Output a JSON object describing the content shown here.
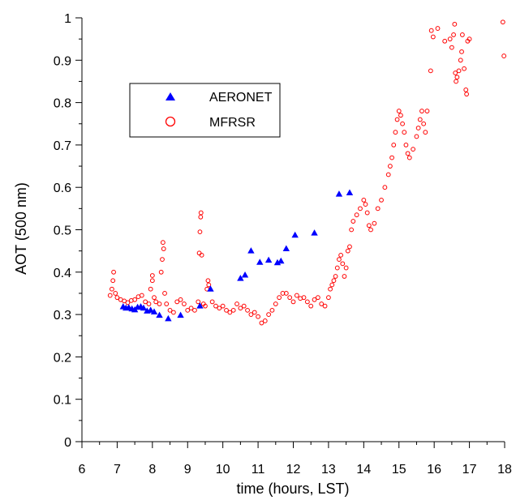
{
  "chart_data": {
    "type": "scatter",
    "title": "",
    "xlabel": "time (hours, LST)",
    "ylabel": "AOT (500 nm)",
    "xlim": [
      6,
      18
    ],
    "ylim": [
      0,
      1
    ],
    "x_major_ticks": [
      6,
      7,
      8,
      9,
      10,
      11,
      12,
      13,
      14,
      15,
      16,
      17,
      18
    ],
    "y_major_ticks": [
      0,
      0.1,
      0.2,
      0.3,
      0.4,
      0.5,
      0.6,
      0.7,
      0.8,
      0.9,
      1
    ],
    "x_tick_labels": [
      "6",
      "7",
      "8",
      "9",
      "10",
      "11",
      "12",
      "13",
      "14",
      "15",
      "16",
      "17",
      "18"
    ],
    "y_tick_labels": [
      "0",
      "0.1",
      "0.2",
      "0.3",
      "0.4",
      "0.5",
      "0.6",
      "0.7",
      "0.8",
      "0.9",
      "1"
    ],
    "grid": false,
    "legend": {
      "placement": "upper-left inside plot",
      "entries": [
        {
          "label": "AERONET",
          "marker": "filled-triangle",
          "color": "#0000ff"
        },
        {
          "label": "MFRSR",
          "marker": "open-circle",
          "color": "#ff0000"
        }
      ]
    },
    "series": [
      {
        "name": "AERONET",
        "marker": "filled-triangle",
        "color": "#0000ff",
        "points": [
          [
            7.17,
            0.318
          ],
          [
            7.25,
            0.315
          ],
          [
            7.33,
            0.316
          ],
          [
            7.42,
            0.313
          ],
          [
            7.5,
            0.311
          ],
          [
            7.58,
            0.317
          ],
          [
            7.67,
            0.318
          ],
          [
            7.75,
            0.315
          ],
          [
            7.85,
            0.308
          ],
          [
            7.95,
            0.31
          ],
          [
            8.05,
            0.306
          ],
          [
            8.2,
            0.298
          ],
          [
            8.45,
            0.29
          ],
          [
            8.8,
            0.298
          ],
          [
            9.35,
            0.32
          ],
          [
            9.65,
            0.36
          ],
          [
            10.5,
            0.385
          ],
          [
            10.63,
            0.393
          ],
          [
            10.8,
            0.45
          ],
          [
            11.05,
            0.423
          ],
          [
            11.3,
            0.428
          ],
          [
            11.55,
            0.422
          ],
          [
            11.65,
            0.426
          ],
          [
            11.8,
            0.455
          ],
          [
            12.05,
            0.487
          ],
          [
            12.6,
            0.492
          ],
          [
            13.3,
            0.584
          ],
          [
            13.6,
            0.587
          ]
        ]
      },
      {
        "name": "MFRSR",
        "marker": "open-circle",
        "color": "#ff0000",
        "points": [
          [
            6.8,
            0.345
          ],
          [
            6.85,
            0.36
          ],
          [
            6.88,
            0.38
          ],
          [
            6.9,
            0.4
          ],
          [
            6.95,
            0.35
          ],
          [
            7,
            0.34
          ],
          [
            7.1,
            0.335
          ],
          [
            7.2,
            0.332
          ],
          [
            7.3,
            0.328
          ],
          [
            7.4,
            0.333
          ],
          [
            7.5,
            0.335
          ],
          [
            7.6,
            0.342
          ],
          [
            7.7,
            0.345
          ],
          [
            7.8,
            0.33
          ],
          [
            7.9,
            0.325
          ],
          [
            7.95,
            0.36
          ],
          [
            8,
            0.38
          ],
          [
            8,
            0.392
          ],
          [
            8.05,
            0.34
          ],
          [
            8.1,
            0.33
          ],
          [
            8.2,
            0.325
          ],
          [
            8.25,
            0.4
          ],
          [
            8.28,
            0.43
          ],
          [
            8.3,
            0.47
          ],
          [
            8.32,
            0.455
          ],
          [
            8.35,
            0.35
          ],
          [
            8.4,
            0.325
          ],
          [
            8.5,
            0.31
          ],
          [
            8.6,
            0.305
          ],
          [
            8.7,
            0.33
          ],
          [
            8.8,
            0.335
          ],
          [
            8.9,
            0.325
          ],
          [
            9,
            0.31
          ],
          [
            9.1,
            0.315
          ],
          [
            9.2,
            0.31
          ],
          [
            9.3,
            0.33
          ],
          [
            9.33,
            0.445
          ],
          [
            9.35,
            0.495
          ],
          [
            9.37,
            0.53
          ],
          [
            9.38,
            0.54
          ],
          [
            9.4,
            0.44
          ],
          [
            9.45,
            0.325
          ],
          [
            9.5,
            0.32
          ],
          [
            9.55,
            0.36
          ],
          [
            9.58,
            0.38
          ],
          [
            9.6,
            0.37
          ],
          [
            9.7,
            0.33
          ],
          [
            9.8,
            0.32
          ],
          [
            9.9,
            0.315
          ],
          [
            10,
            0.32
          ],
          [
            10.1,
            0.31
          ],
          [
            10.2,
            0.305
          ],
          [
            10.3,
            0.31
          ],
          [
            10.4,
            0.325
          ],
          [
            10.5,
            0.315
          ],
          [
            10.6,
            0.32
          ],
          [
            10.7,
            0.31
          ],
          [
            10.8,
            0.3
          ],
          [
            10.9,
            0.305
          ],
          [
            11,
            0.295
          ],
          [
            11.1,
            0.28
          ],
          [
            11.2,
            0.285
          ],
          [
            11.3,
            0.3
          ],
          [
            11.4,
            0.31
          ],
          [
            11.5,
            0.325
          ],
          [
            11.6,
            0.34
          ],
          [
            11.7,
            0.35
          ],
          [
            11.8,
            0.35
          ],
          [
            11.9,
            0.34
          ],
          [
            12,
            0.33
          ],
          [
            12.1,
            0.345
          ],
          [
            12.2,
            0.338
          ],
          [
            12.3,
            0.34
          ],
          [
            12.4,
            0.33
          ],
          [
            12.5,
            0.32
          ],
          [
            12.6,
            0.335
          ],
          [
            12.7,
            0.34
          ],
          [
            12.8,
            0.325
          ],
          [
            12.9,
            0.32
          ],
          [
            13,
            0.34
          ],
          [
            13.05,
            0.36
          ],
          [
            13.1,
            0.37
          ],
          [
            13.15,
            0.38
          ],
          [
            13.2,
            0.39
          ],
          [
            13.25,
            0.41
          ],
          [
            13.3,
            0.43
          ],
          [
            13.35,
            0.44
          ],
          [
            13.4,
            0.42
          ],
          [
            13.45,
            0.39
          ],
          [
            13.5,
            0.41
          ],
          [
            13.55,
            0.45
          ],
          [
            13.6,
            0.46
          ],
          [
            13.65,
            0.5
          ],
          [
            13.7,
            0.52
          ],
          [
            13.8,
            0.535
          ],
          [
            13.9,
            0.55
          ],
          [
            14,
            0.57
          ],
          [
            14.05,
            0.56
          ],
          [
            14.1,
            0.54
          ],
          [
            14.15,
            0.51
          ],
          [
            14.2,
            0.5
          ],
          [
            14.3,
            0.515
          ],
          [
            14.4,
            0.55
          ],
          [
            14.5,
            0.57
          ],
          [
            14.6,
            0.6
          ],
          [
            14.7,
            0.63
          ],
          [
            14.75,
            0.65
          ],
          [
            14.8,
            0.67
          ],
          [
            14.85,
            0.7
          ],
          [
            14.9,
            0.73
          ],
          [
            14.95,
            0.76
          ],
          [
            15,
            0.78
          ],
          [
            15.05,
            0.77
          ],
          [
            15.1,
            0.75
          ],
          [
            15.15,
            0.73
          ],
          [
            15.2,
            0.7
          ],
          [
            15.25,
            0.68
          ],
          [
            15.3,
            0.67
          ],
          [
            15.4,
            0.69
          ],
          [
            15.5,
            0.72
          ],
          [
            15.55,
            0.74
          ],
          [
            15.6,
            0.76
          ],
          [
            15.65,
            0.78
          ],
          [
            15.7,
            0.75
          ],
          [
            15.75,
            0.73
          ],
          [
            15.8,
            0.78
          ],
          [
            15.9,
            0.875
          ],
          [
            15.92,
            0.97
          ],
          [
            15.97,
            0.955
          ],
          [
            16.1,
            0.975
          ],
          [
            16.3,
            0.945
          ],
          [
            16.45,
            0.95
          ],
          [
            16.5,
            0.93
          ],
          [
            16.55,
            0.96
          ],
          [
            16.58,
            0.985
          ],
          [
            16.6,
            0.87
          ],
          [
            16.62,
            0.85
          ],
          [
            16.65,
            0.86
          ],
          [
            16.7,
            0.875
          ],
          [
            16.75,
            0.9
          ],
          [
            16.78,
            0.92
          ],
          [
            16.8,
            0.96
          ],
          [
            16.85,
            0.88
          ],
          [
            16.9,
            0.83
          ],
          [
            16.92,
            0.82
          ],
          [
            16.95,
            0.945
          ],
          [
            17,
            0.95
          ],
          [
            17.95,
            0.99
          ],
          [
            17.98,
            0.91
          ]
        ]
      }
    ]
  }
}
